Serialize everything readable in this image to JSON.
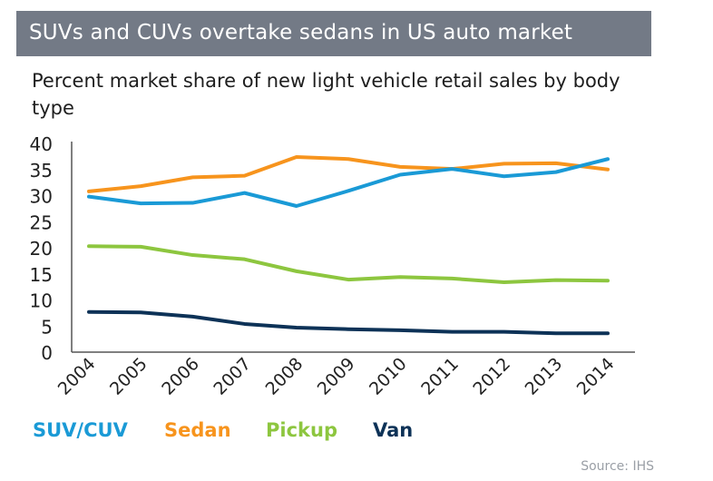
{
  "header": {
    "title": "SUVs and CUVs overtake sedans in US auto market"
  },
  "chart_data": {
    "type": "line",
    "title": "SUVs and CUVs overtake sedans in US auto market",
    "subtitle": "Percent market share of new light vehicle retail sales by body type",
    "xlabel": "",
    "ylabel": "",
    "x": [
      "2004",
      "2005",
      "2006",
      "2007",
      "2008",
      "2009",
      "2010",
      "2011",
      "2012",
      "2013",
      "2014"
    ],
    "ylim": [
      0,
      40
    ],
    "yticks": [
      0,
      5,
      10,
      15,
      20,
      25,
      30,
      35,
      40
    ],
    "series": [
      {
        "name": "SUV/CUV",
        "color": "#1a9ad6",
        "values": [
          29.8,
          28.5,
          28.6,
          30.5,
          28.0,
          30.9,
          34.0,
          35.1,
          33.7,
          34.5,
          37.0
        ]
      },
      {
        "name": "Sedan",
        "color": "#f7941d",
        "values": [
          30.8,
          31.8,
          33.5,
          33.8,
          37.4,
          37.0,
          35.5,
          35.1,
          36.1,
          36.2,
          35.0
        ]
      },
      {
        "name": "Pickup",
        "color": "#8dc63f",
        "values": [
          20.3,
          20.2,
          18.6,
          17.8,
          15.5,
          13.9,
          14.4,
          14.1,
          13.4,
          13.8,
          13.7
        ]
      },
      {
        "name": "Van",
        "color": "#0d3257",
        "values": [
          7.7,
          7.6,
          6.8,
          5.4,
          4.7,
          4.4,
          4.2,
          3.9,
          3.9,
          3.6,
          3.6
        ]
      }
    ],
    "source": "Source: IHS"
  }
}
